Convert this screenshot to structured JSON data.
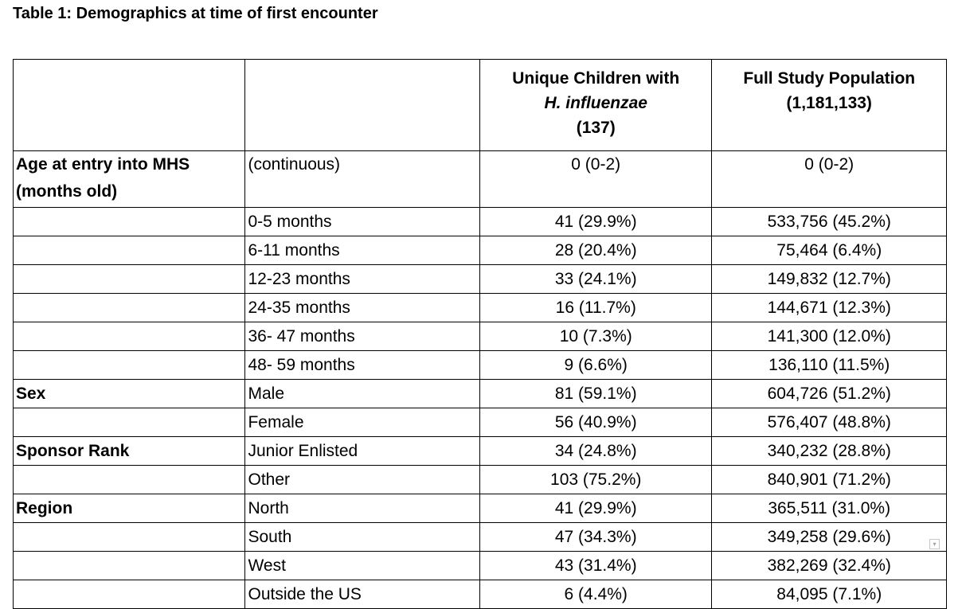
{
  "title": "Table 1: Demographics at time of first encounter",
  "header": {
    "col1": "",
    "col2": "",
    "col3_line1": "Unique Children with",
    "col3_line2": "H. influenzae",
    "col3_line3": "(137)",
    "col4_line1": "Full Study Population",
    "col4_line2": "(1,181,133)"
  },
  "rows": [
    {
      "group": "Age at entry into MHS (months old)",
      "label": "(continuous)",
      "hi": "0 (0-2)",
      "full": "0 (0-2)"
    },
    {
      "group": "",
      "label": "0-5 months",
      "hi": "41 (29.9%)",
      "full": "533,756 (45.2%)"
    },
    {
      "group": "",
      "label": "6-11 months",
      "hi": "28 (20.4%)",
      "full": "75,464 (6.4%)"
    },
    {
      "group": "",
      "label": "12-23 months",
      "hi": "33 (24.1%)",
      "full": "149,832 (12.7%)"
    },
    {
      "group": "",
      "label": "24-35 months",
      "hi": "16 (11.7%)",
      "full": "144,671 (12.3%)"
    },
    {
      "group": "",
      "label": "36- 47 months",
      "hi": "10 (7.3%)",
      "full": "141,300 (12.0%)"
    },
    {
      "group": "",
      "label": "48- 59 months",
      "hi": "9 (6.6%)",
      "full": "136,110 (11.5%)"
    },
    {
      "group": "Sex",
      "label": "Male",
      "hi": "81 (59.1%)",
      "full": "604,726 (51.2%)"
    },
    {
      "group": "",
      "label": "Female",
      "hi": "56 (40.9%)",
      "full": "576,407 (48.8%)"
    },
    {
      "group": "Sponsor Rank",
      "label": "Junior Enlisted",
      "hi": "34 (24.8%)",
      "full": "340,232 (28.8%)"
    },
    {
      "group": "",
      "label": "Other",
      "hi": "103 (75.2%)",
      "full": "840,901 (71.2%)"
    },
    {
      "group": "Region",
      "label": "North",
      "hi": "41 (29.9%)",
      "full": "365,511 (31.0%)"
    },
    {
      "group": "",
      "label": "South",
      "hi": "47 (34.3%)",
      "full": "349,258 (29.6%)"
    },
    {
      "group": "",
      "label": "West",
      "hi": "43 (31.4%)",
      "full": "382,269 (32.4%)"
    },
    {
      "group": "",
      "label": "Outside the US",
      "hi": "6 (4.4%)",
      "full": "84,095 (7.1%)"
    }
  ],
  "icons": {
    "paste_options": "paste-options-icon"
  }
}
